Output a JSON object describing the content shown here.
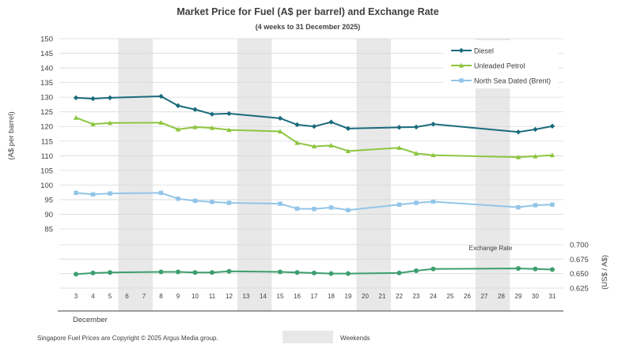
{
  "chart_data": {
    "type": "line",
    "title": "Market Price for Fuel (A$ per barrel) and Exchange Rate",
    "subtitle": "(4 weeks to 31 December 2025)",
    "ylabel": "(A$ per barrel)",
    "y2label": "(US$ / A$)",
    "xlabel": "December",
    "exchange_label": "Exchange   Rate",
    "ylim": [
      85,
      150
    ],
    "yticks": [
      "150",
      "145",
      "140",
      "135",
      "130",
      "125",
      "120",
      "115",
      "110",
      "105",
      "100",
      "95",
      "90",
      "85"
    ],
    "y2lim": [
      0.625,
      0.7
    ],
    "y2ticks": [
      "0.700",
      "0.675",
      "0.650",
      "0.625"
    ],
    "x": [
      3,
      4,
      5,
      6,
      7,
      8,
      9,
      10,
      11,
      12,
      13,
      14,
      15,
      16,
      17,
      18,
      19,
      20,
      21,
      22,
      23,
      24,
      25,
      26,
      27,
      28,
      29,
      30,
      31
    ],
    "x_labels": [
      "3",
      "4",
      "5",
      "6",
      "7",
      "8",
      "9",
      "10",
      "11",
      "12",
      "13",
      "14",
      "15",
      "16",
      "17",
      "18",
      "19",
      "20",
      "21",
      "22",
      "23",
      "24",
      "25",
      "26",
      "27",
      "28",
      "29",
      "30",
      "31"
    ],
    "weekend_ranges": [
      [
        6,
        7
      ],
      [
        13,
        14
      ],
      [
        20,
        21
      ],
      [
        27,
        28
      ]
    ],
    "grid": true,
    "legend_position": "top-right",
    "series": [
      {
        "name": "Diesel",
        "color": "#1a6b7c",
        "marker": "diamond",
        "x": [
          3,
          4,
          5,
          8,
          9,
          10,
          11,
          12,
          15,
          16,
          17,
          18,
          19,
          22,
          23,
          24,
          29,
          30,
          31
        ],
        "values": [
          129.8,
          129.5,
          129.8,
          130.3,
          127.1,
          125.8,
          124.2,
          124.4,
          122.8,
          120.6,
          120.0,
          121.5,
          119.3,
          119.7,
          119.8,
          120.8,
          118.1,
          119.0,
          120.1
        ]
      },
      {
        "name": "Unleaded Petrol",
        "color": "#8dc63f",
        "marker": "triangle",
        "x": [
          3,
          4,
          5,
          8,
          9,
          10,
          11,
          12,
          15,
          16,
          17,
          18,
          19,
          22,
          23,
          24,
          29,
          30,
          31
        ],
        "values": [
          123.0,
          120.8,
          121.2,
          121.3,
          119.0,
          119.8,
          119.5,
          118.8,
          118.3,
          114.4,
          113.2,
          113.5,
          111.6,
          112.7,
          110.8,
          110.2,
          109.5,
          109.8,
          110.2
        ]
      },
      {
        "name": "North Sea Dated (Brent)",
        "color": "#92c5e8",
        "marker": "square",
        "x": [
          3,
          4,
          5,
          8,
          9,
          10,
          11,
          12,
          15,
          16,
          17,
          18,
          19,
          22,
          23,
          24,
          29,
          30,
          31
        ],
        "values": [
          97.3,
          96.8,
          97.1,
          97.3,
          95.3,
          94.6,
          94.2,
          93.9,
          93.6,
          91.9,
          91.8,
          92.3,
          91.4,
          93.3,
          93.9,
          94.3,
          92.4,
          93.1,
          93.3
        ]
      },
      {
        "name": "",
        "axis": "secondary",
        "color": "#3d9e6e",
        "marker": "circle",
        "x": [
          3,
          4,
          5,
          8,
          9,
          10,
          11,
          12,
          15,
          16,
          17,
          18,
          19,
          22,
          23,
          24,
          29,
          30,
          31
        ],
        "values": [
          0.649,
          0.651,
          0.652,
          0.653,
          0.653,
          0.652,
          0.652,
          0.654,
          0.653,
          0.652,
          0.651,
          0.65,
          0.65,
          0.651,
          0.655,
          0.658,
          0.659,
          0.658,
          0.657
        ]
      }
    ]
  },
  "footer": {
    "copyright": "Singapore  Fuel  Prices  are  Copyright  ©  2025  Argus  Media  group.",
    "weekends_label": "Weekends"
  }
}
